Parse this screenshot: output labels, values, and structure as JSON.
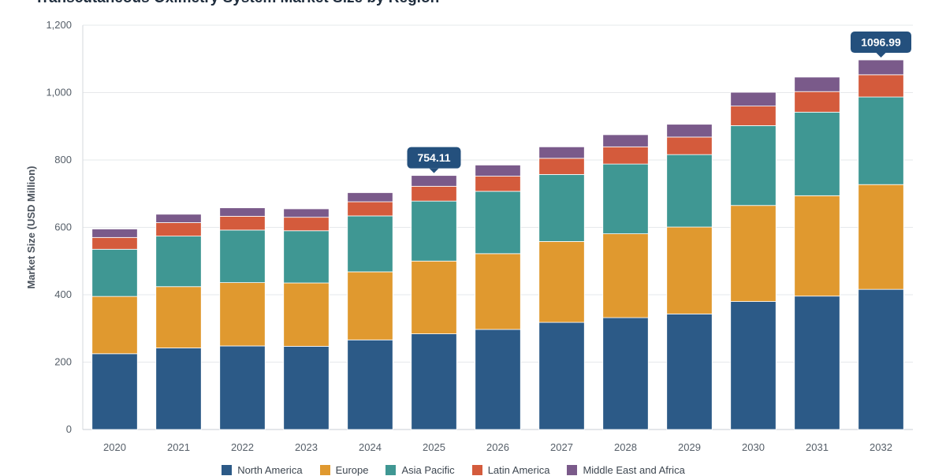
{
  "chart_data": {
    "type": "bar",
    "stacked": true,
    "title": "Transcutaneous Oximetry System Market Size by Region",
    "ylabel": "Market Size (USD Million)",
    "xlabel": "",
    "ylim": [
      0,
      1200
    ],
    "yticks": [
      0,
      200,
      400,
      600,
      800,
      1000,
      1200
    ],
    "ytick_labels": [
      "0",
      "200",
      "400",
      "600",
      "800",
      "1,000",
      "1,200"
    ],
    "grid": true,
    "legend_position": "bottom",
    "categories": [
      "2020",
      "2021",
      "2022",
      "2023",
      "2024",
      "2025",
      "2026",
      "2027",
      "2028",
      "2029",
      "2030",
      "2031",
      "2032"
    ],
    "series": [
      {
        "name": "North America",
        "color": "#2c5a87",
        "values": [
          225,
          242,
          248,
          247,
          266,
          284,
          297,
          318,
          332,
          343,
          380,
          396,
          416
        ]
      },
      {
        "name": "Europe",
        "color": "#e0992f",
        "values": [
          170,
          182,
          188,
          188,
          202,
          216,
          225,
          240,
          249,
          258,
          285,
          298,
          311
        ]
      },
      {
        "name": "Asia Pacific",
        "color": "#3f9793",
        "values": [
          140,
          150,
          156,
          155,
          166,
          178,
          185,
          199,
          207,
          215,
          237,
          248,
          260
        ]
      },
      {
        "name": "Latin America",
        "color": "#d45b3c",
        "values": [
          35,
          40,
          41,
          40,
          42,
          44,
          45,
          48,
          51,
          52,
          58,
          61,
          66
        ]
      },
      {
        "name": "Middle East and Africa",
        "color": "#7a5a8a",
        "values": [
          25,
          25,
          25,
          25,
          27,
          32,
          33,
          34,
          36,
          38,
          41,
          43,
          43.99
        ]
      }
    ],
    "annotations": [
      {
        "category": "2025",
        "text": "754.11"
      },
      {
        "category": "2032",
        "text": "1096.99"
      }
    ]
  }
}
